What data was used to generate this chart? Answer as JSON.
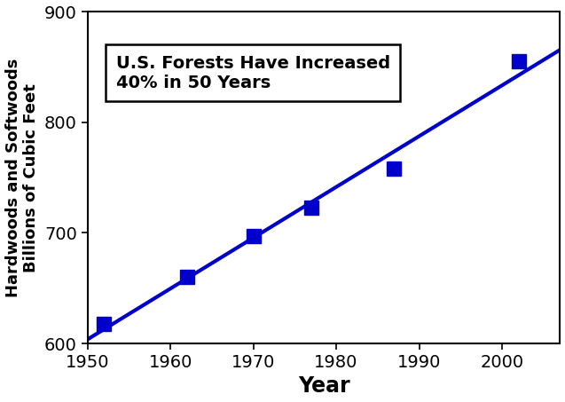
{
  "x": [
    1952,
    1962,
    1970,
    1977,
    1987,
    2002
  ],
  "y": [
    618,
    660,
    697,
    723,
    758,
    855
  ],
  "color": "#0000CC",
  "line_width": 3.0,
  "marker": "s",
  "marker_size": 11,
  "xlabel": "Year",
  "ylabel": "Hardwoods and Softwoods\nBillions of Cubic Feet",
  "annotation_title": "U.S. Forests Have Increased\n40% in 50 Years",
  "xlim": [
    1950,
    2007
  ],
  "ylim": [
    600,
    900
  ],
  "xticks": [
    1950,
    1960,
    1970,
    1980,
    1990,
    2000
  ],
  "yticks": [
    600,
    700,
    800,
    900
  ],
  "xlabel_fontsize": 17,
  "ylabel_fontsize": 13,
  "tick_fontsize": 14,
  "annotation_fontsize": 14,
  "background_color": "#ffffff"
}
